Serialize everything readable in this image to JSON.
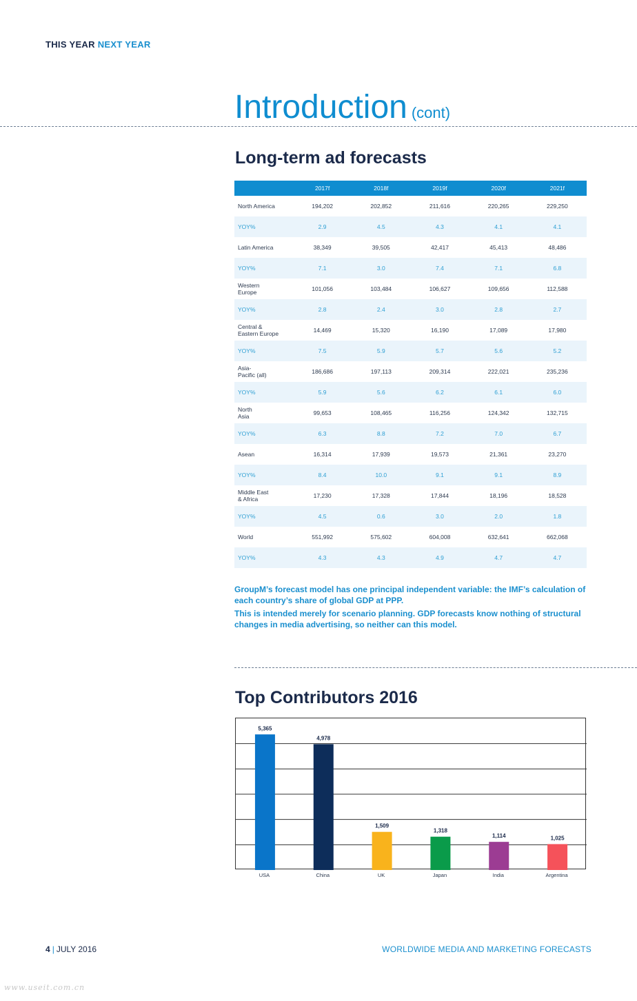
{
  "masthead": {
    "part1": "THIS YEAR",
    "part2": "NEXT YEAR"
  },
  "intro": {
    "title": "Introduction",
    "cont": "(cont)"
  },
  "forecast": {
    "title": "Long-term ad forecasts",
    "years": [
      "2017f",
      "2018f",
      "2019f",
      "2020f",
      "2021f"
    ],
    "rows": [
      {
        "label": [
          "North America"
        ],
        "values": [
          "194,202",
          "202,852",
          "211,616",
          "220,265",
          "229,250"
        ],
        "yoy": [
          "2.9",
          "4.5",
          "4.3",
          "4.1",
          "4.1"
        ]
      },
      {
        "label": [
          "Latin America"
        ],
        "values": [
          "38,349",
          "39,505",
          "42,417",
          "45,413",
          "48,486"
        ],
        "yoy": [
          "7.1",
          "3.0",
          "7.4",
          "7.1",
          "6.8"
        ]
      },
      {
        "label": [
          "Western",
          "Europe"
        ],
        "values": [
          "101,056",
          "103,484",
          "106,627",
          "109,656",
          "112,588"
        ],
        "yoy": [
          "2.8",
          "2.4",
          "3.0",
          "2.8",
          "2.7"
        ]
      },
      {
        "label": [
          "Central &",
          "Eastern Europe"
        ],
        "values": [
          "14,469",
          "15,320",
          "16,190",
          "17,089",
          "17,980"
        ],
        "yoy": [
          "7.5",
          "5.9",
          "5.7",
          "5.6",
          "5.2"
        ]
      },
      {
        "label": [
          "Asia-",
          "Pacific (all)"
        ],
        "values": [
          "186,686",
          "197,113",
          "209,314",
          "222,021",
          "235,236"
        ],
        "yoy": [
          "5.9",
          "5.6",
          "6.2",
          "6.1",
          "6.0"
        ]
      },
      {
        "label": [
          "North",
          "Asia"
        ],
        "values": [
          "99,653",
          "108,465",
          "116,256",
          "124,342",
          "132,715"
        ],
        "yoy": [
          "6.3",
          "8.8",
          "7.2",
          "7.0",
          "6.7"
        ]
      },
      {
        "label": [
          "Asean"
        ],
        "values": [
          "16,314",
          "17,939",
          "19,573",
          "21,361",
          "23,270"
        ],
        "yoy": [
          "8.4",
          "10.0",
          "9.1",
          "9.1",
          "8.9"
        ]
      },
      {
        "label": [
          "Middle East",
          "& Africa"
        ],
        "values": [
          "17,230",
          "17,328",
          "17,844",
          "18,196",
          "18,528"
        ],
        "yoy": [
          "4.5",
          "0.6",
          "3.0",
          "2.0",
          "1.8"
        ]
      },
      {
        "label": [
          "World"
        ],
        "values": [
          "551,992",
          "575,602",
          "604,008",
          "632,641",
          "662,068"
        ],
        "yoy": [
          "4.3",
          "4.3",
          "4.9",
          "4.7",
          "4.7"
        ]
      }
    ],
    "yoy_label": "YOY%"
  },
  "notes": [
    "GroupM’s forecast model has one principal independent variable: the IMF’s calculation of each country’s share of global GDP at PPP.",
    "This is intended merely for scenario planning. GDP forecasts know nothing of structural changes in media advertising, so neither can this model."
  ],
  "chart_data": {
    "type": "bar",
    "title": "Top Contributors 2016",
    "categories": [
      "USA",
      "China",
      "UK",
      "Japan",
      "India",
      "Argentina"
    ],
    "values": [
      5365,
      4978,
      1509,
      1318,
      1114,
      1025
    ],
    "value_labels": [
      "5,365",
      "4,978",
      "1,509",
      "1,318",
      "1,114",
      "1,025"
    ],
    "colors": [
      "#0a75c9",
      "#0d2d5a",
      "#f9b31c",
      "#0a9b4a",
      "#9c3c93",
      "#f5525a"
    ],
    "ylim": [
      0,
      6000
    ],
    "grid": true,
    "xlabel": "",
    "ylabel": ""
  },
  "footer": {
    "page": "4",
    "date": "JULY 2016",
    "publication": "WORLDWIDE MEDIA AND MARKETING FORECASTS"
  },
  "watermark": "www.useit.com.cn"
}
